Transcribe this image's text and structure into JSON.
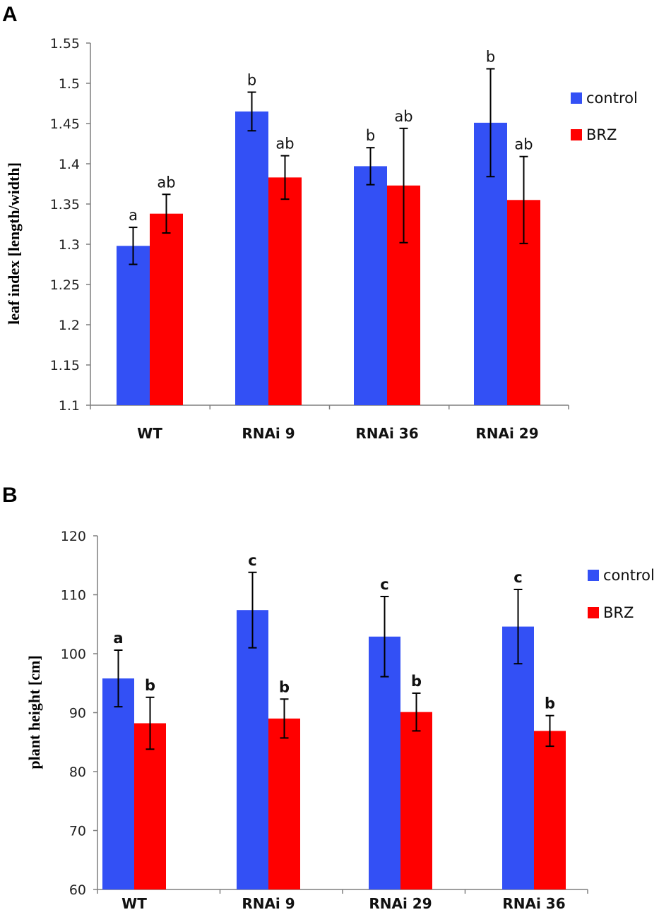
{
  "chart_data": [
    {
      "panel": "A",
      "type": "bar",
      "title": "",
      "xlabel": "",
      "ylabel": "leaf index [length/width]",
      "ylim": [
        1.1,
        1.55
      ],
      "yticks": [
        "1.1",
        "1.15",
        "1.2",
        "1.25",
        "1.3",
        "1.35",
        "1.4",
        "1.45",
        "1.5",
        "1.55"
      ],
      "ytick_values": [
        1.1,
        1.15,
        1.2,
        1.25,
        1.3,
        1.35,
        1.4,
        1.45,
        1.5,
        1.55
      ],
      "categories": [
        "WT",
        "RNAi 9",
        "RNAi 36",
        "RNAi 29"
      ],
      "legend_position": "right",
      "series": [
        {
          "name": "control",
          "color": "#3350f5",
          "values": [
            1.298,
            1.465,
            1.397,
            1.451
          ],
          "errors": [
            0.023,
            0.024,
            0.023,
            0.067
          ],
          "labels": [
            "a",
            "b",
            "b",
            "b"
          ]
        },
        {
          "name": "BRZ",
          "color": "#ff0000",
          "values": [
            1.338,
            1.383,
            1.373,
            1.355
          ],
          "errors": [
            0.024,
            0.027,
            0.071,
            0.054
          ],
          "labels": [
            "ab",
            "ab",
            "ab",
            "ab"
          ]
        }
      ]
    },
    {
      "panel": "B",
      "type": "bar",
      "title": "",
      "xlabel": "",
      "ylabel": "plant height [cm]",
      "ylim": [
        60,
        120
      ],
      "yticks": [
        "60",
        "70",
        "80",
        "90",
        "100",
        "110",
        "120"
      ],
      "ytick_values": [
        60,
        70,
        80,
        90,
        100,
        110,
        120
      ],
      "categories": [
        "WT",
        "RNAi 9",
        "RNAi 29",
        "RNAi 36"
      ],
      "legend_position": "right",
      "series": [
        {
          "name": "control",
          "color": "#3350f5",
          "values": [
            95.8,
            107.4,
            102.9,
            104.6
          ],
          "errors": [
            4.8,
            6.4,
            6.8,
            6.3
          ],
          "labels": [
            "a",
            "c",
            "c",
            "c"
          ]
        },
        {
          "name": "BRZ",
          "color": "#ff0000",
          "values": [
            88.2,
            89.0,
            90.1,
            86.9
          ],
          "errors": [
            4.4,
            3.3,
            3.2,
            2.6
          ],
          "labels": [
            "b",
            "b",
            "b",
            "b"
          ]
        }
      ]
    }
  ]
}
